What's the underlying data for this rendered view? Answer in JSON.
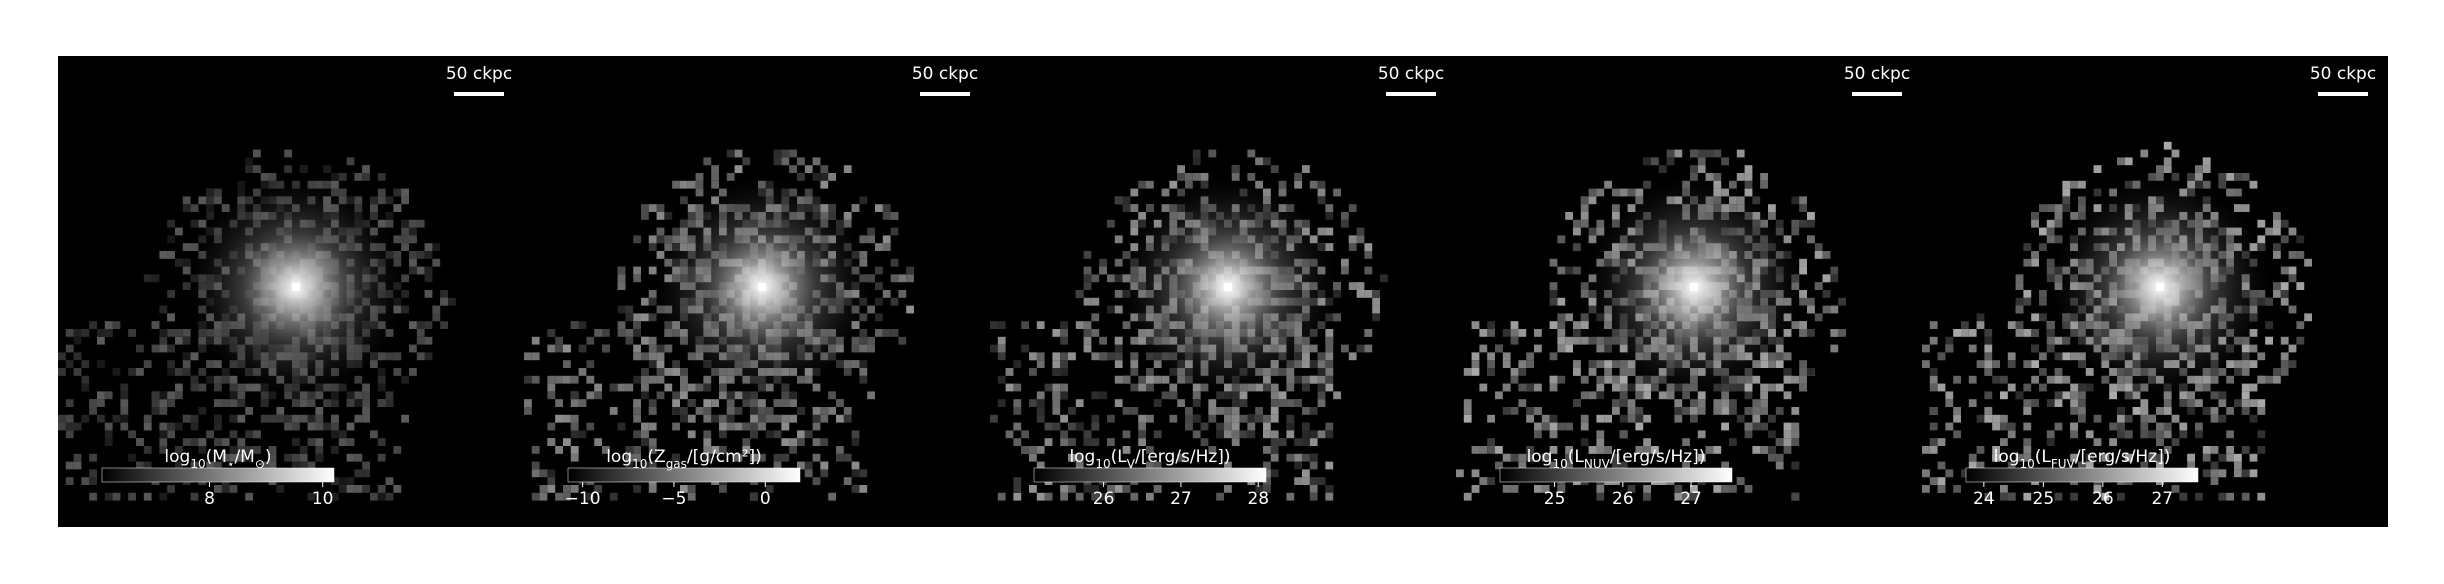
{
  "panels": [
    {
      "scale_bar": "50 ckpc",
      "colorbar": {
        "label": [
          "log",
          "10",
          "(M",
          "⋆",
          "/M",
          "⊙",
          ")"
        ],
        "lim": [
          6.1,
          10.2
        ],
        "ticks": [
          8,
          10
        ]
      }
    },
    {
      "scale_bar": "50 ckpc",
      "colorbar": {
        "label": [
          "log",
          "10",
          "(Z",
          "gas",
          "/[g/cm²])"
        ],
        "lim": [
          -10.8,
          1.9
        ],
        "ticks": [
          {
            "value": -10,
            "label": "−10"
          },
          {
            "value": -5,
            "label": "−5"
          },
          0
        ]
      }
    },
    {
      "scale_bar": "50 ckpc",
      "colorbar": {
        "label": [
          "log",
          "10",
          "(L",
          "V",
          "/[erg/s/Hz])"
        ],
        "lim": [
          25.1,
          28.1
        ],
        "ticks": [
          26,
          27,
          28
        ]
      }
    },
    {
      "scale_bar": "50 ckpc",
      "colorbar": {
        "label": [
          "log",
          "10",
          "(L",
          "NUV",
          "/[erg/s/Hz])"
        ],
        "lim": [
          24.2,
          27.6
        ],
        "ticks": [
          25,
          26,
          27
        ]
      }
    },
    {
      "scale_bar": "50 ckpc",
      "colorbar": {
        "label": [
          "log",
          "10",
          "(L",
          "FUV",
          "/[erg/s/Hz])"
        ],
        "lim": [
          23.7,
          27.6
        ],
        "ticks": [
          24,
          25,
          26,
          27
        ]
      }
    }
  ]
}
